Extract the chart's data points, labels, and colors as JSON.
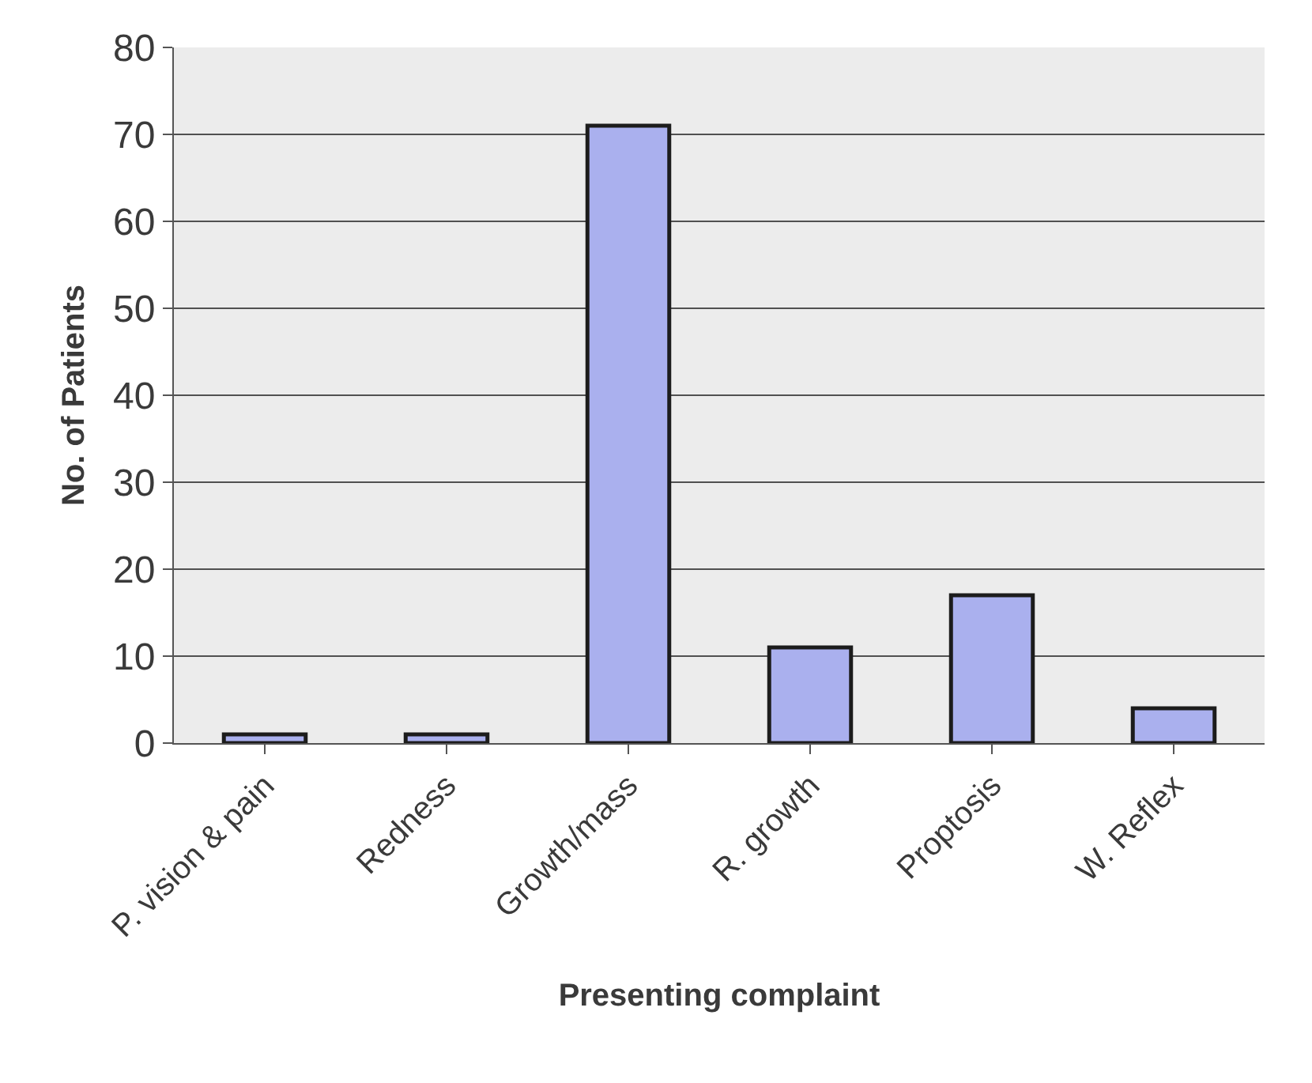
{
  "chart_data": {
    "type": "bar",
    "xlabel": "Presenting complaint",
    "ylabel": "No. of Patients",
    "categories": [
      "P. vision & pain",
      "Redness",
      "Growth/mass",
      "R. growth",
      "Proptosis",
      "W. Reflex"
    ],
    "values": [
      1,
      1,
      71,
      11,
      17,
      4
    ],
    "color": "#aab0ee",
    "ylim": [
      0,
      80
    ],
    "yticks": [
      0,
      10,
      20,
      30,
      40,
      50,
      60,
      70,
      80
    ],
    "grid": "y"
  }
}
